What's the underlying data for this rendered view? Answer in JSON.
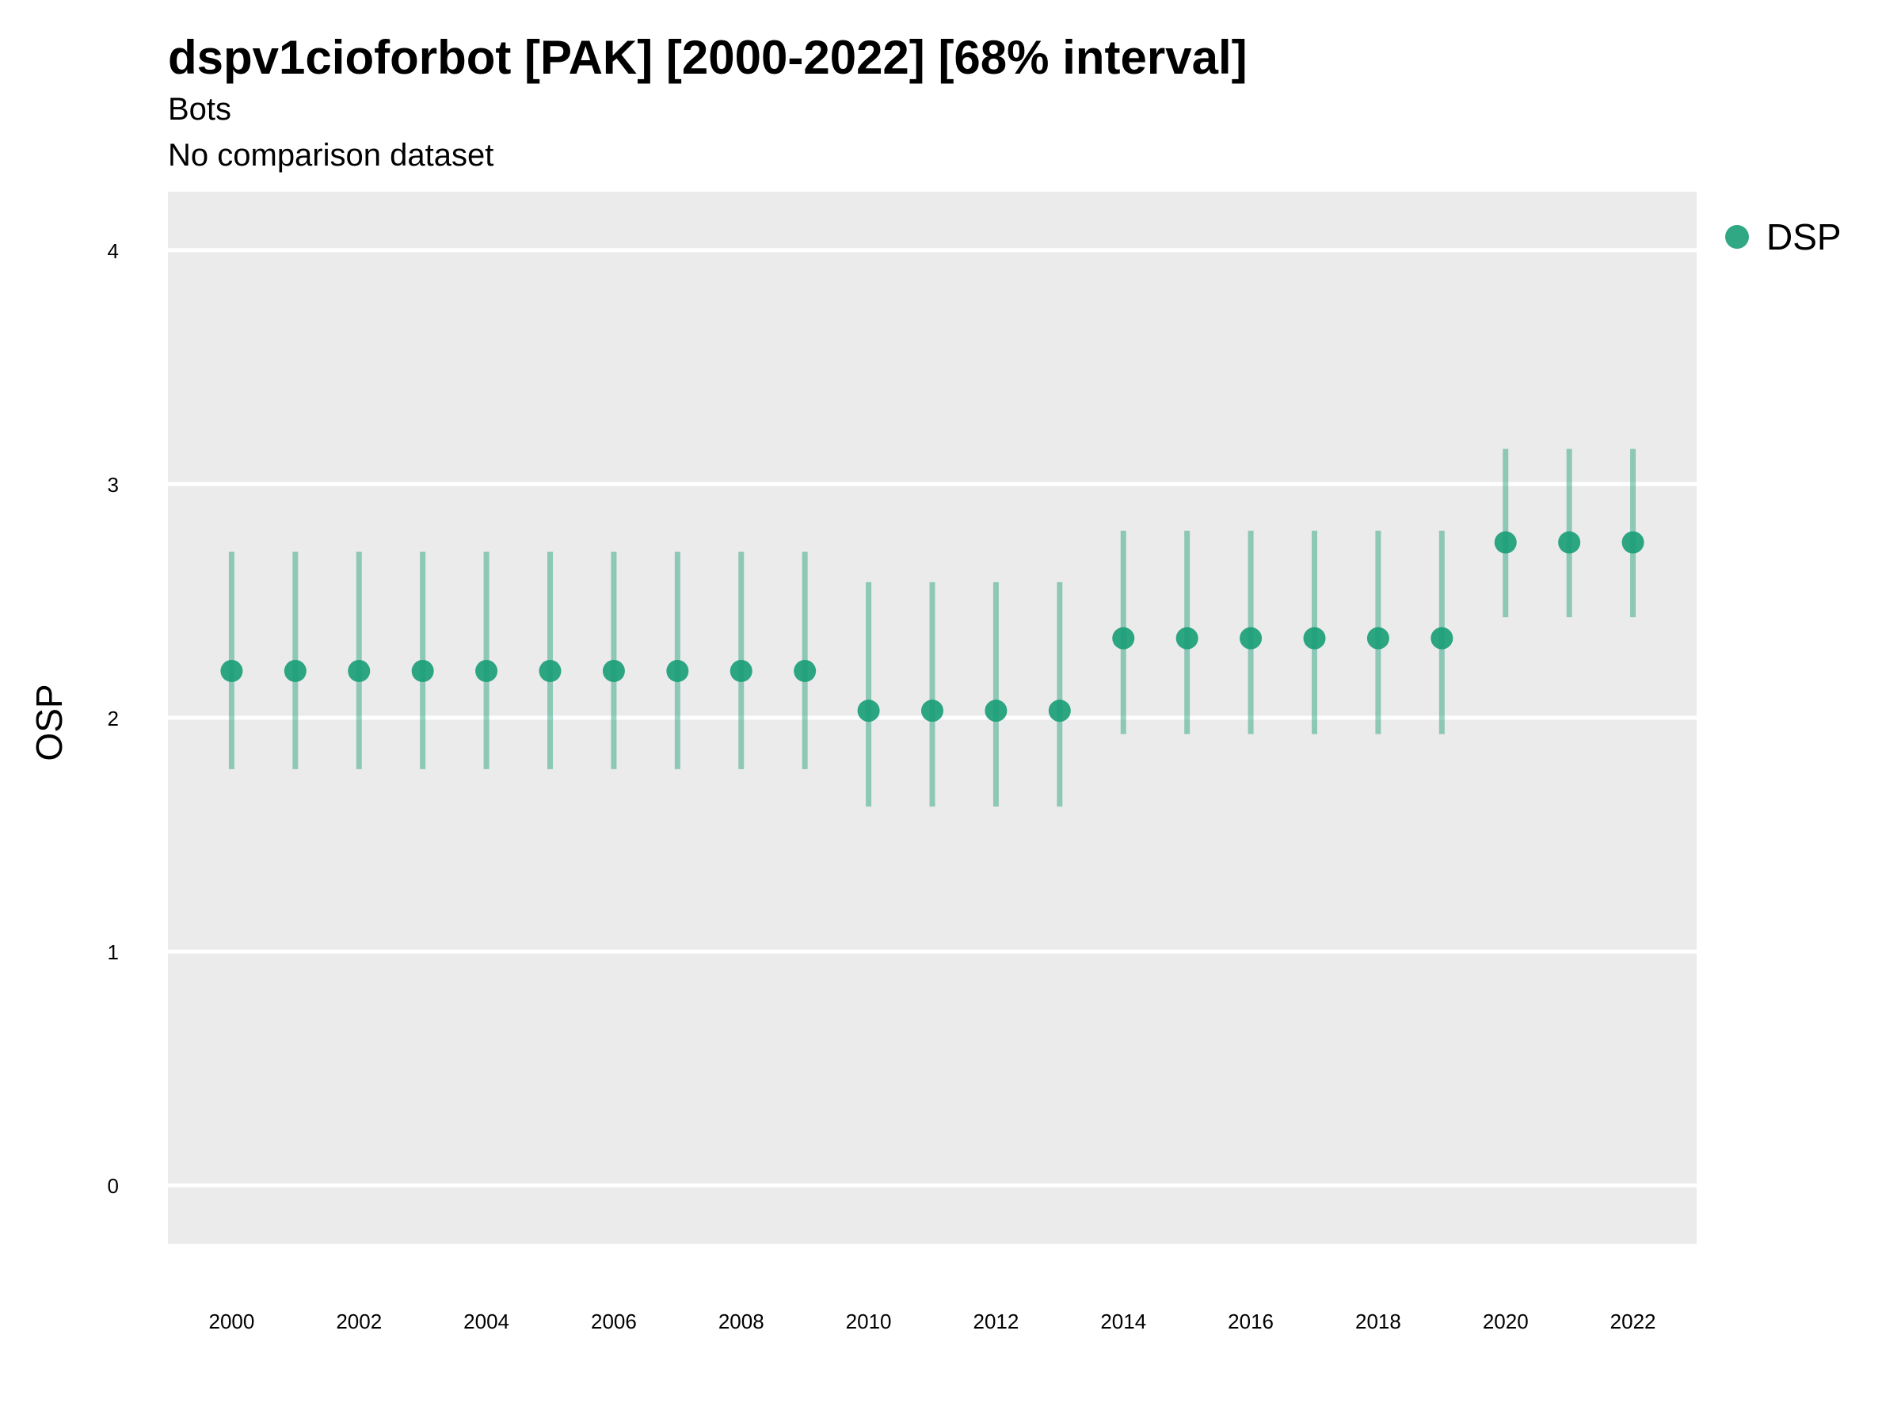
{
  "chart_data": {
    "type": "scatter",
    "title": "dspv1cioforbot [PAK] [2000-2022] [68% interval]",
    "subtitle": "Bots",
    "caption_line": "No comparison dataset",
    "xlabel": "",
    "ylabel": "OSP",
    "xlim": [
      1999,
      2023
    ],
    "ylim": [
      -0.25,
      4.25
    ],
    "x_ticks": [
      2000,
      2002,
      2004,
      2006,
      2008,
      2010,
      2012,
      2014,
      2016,
      2018,
      2020,
      2022
    ],
    "y_ticks": [
      0,
      1,
      2,
      3,
      4
    ],
    "grid": true,
    "legend_position": "right",
    "series": [
      {
        "name": "DSP",
        "color": "#1b9e77",
        "x": [
          2000,
          2001,
          2002,
          2003,
          2004,
          2005,
          2006,
          2007,
          2008,
          2009,
          2010,
          2011,
          2012,
          2013,
          2014,
          2015,
          2016,
          2017,
          2018,
          2019,
          2020,
          2021,
          2022
        ],
        "y": [
          2.2,
          2.2,
          2.2,
          2.2,
          2.2,
          2.2,
          2.2,
          2.2,
          2.2,
          2.2,
          2.03,
          2.03,
          2.03,
          2.03,
          2.34,
          2.34,
          2.34,
          2.34,
          2.34,
          2.34,
          2.75,
          2.75,
          2.75
        ],
        "lower": [
          1.78,
          1.78,
          1.78,
          1.78,
          1.78,
          1.78,
          1.78,
          1.78,
          1.78,
          1.78,
          1.62,
          1.62,
          1.62,
          1.62,
          1.93,
          1.93,
          1.93,
          1.93,
          1.93,
          1.93,
          2.43,
          2.43,
          2.43
        ],
        "upper": [
          2.71,
          2.71,
          2.71,
          2.71,
          2.71,
          2.71,
          2.71,
          2.71,
          2.71,
          2.71,
          2.58,
          2.58,
          2.58,
          2.58,
          2.8,
          2.8,
          2.8,
          2.8,
          2.8,
          2.8,
          3.15,
          3.15,
          3.15
        ]
      }
    ]
  }
}
